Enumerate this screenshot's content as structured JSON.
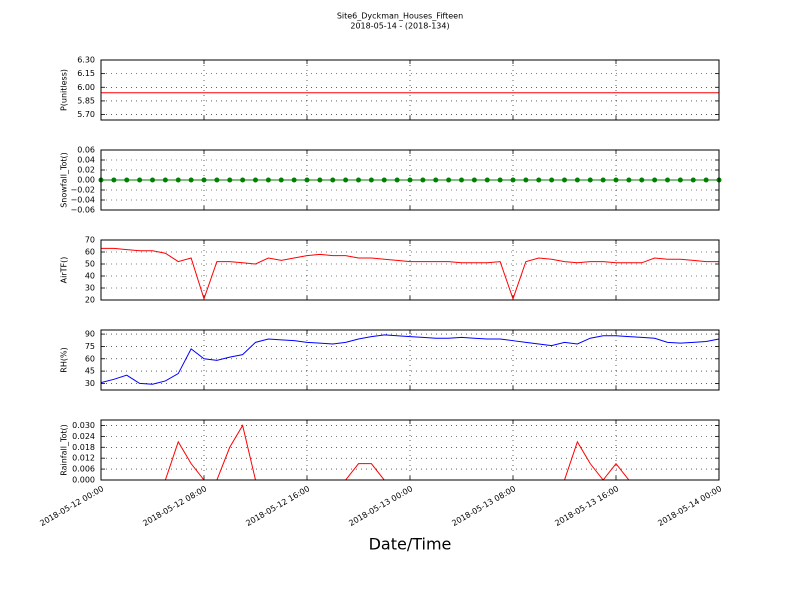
{
  "chart_data": [
    {
      "type": "line",
      "title": "Site6_Dyckman_Houses_Fifteen",
      "subtitle": "2018-05-14 - (2018-134)",
      "ylabel": "P(unitless)",
      "color": "#ff0000",
      "grid": true,
      "x": [
        "2018-05-12 00:00",
        "2018-05-12 02:00",
        "2018-05-12 04:00",
        "2018-05-12 06:00",
        "2018-05-12 08:00",
        "2018-05-12 10:00",
        "2018-05-12 12:00",
        "2018-05-12 14:00",
        "2018-05-12 16:00",
        "2018-05-12 18:00",
        "2018-05-12 20:00",
        "2018-05-12 22:00",
        "2018-05-13 00:00",
        "2018-05-13 02:00",
        "2018-05-13 04:00",
        "2018-05-13 06:00",
        "2018-05-13 08:00",
        "2018-05-13 10:00",
        "2018-05-13 12:00",
        "2018-05-13 14:00",
        "2018-05-13 16:00",
        "2018-05-13 18:00",
        "2018-05-13 20:00",
        "2018-05-13 22:00",
        "2018-05-14 00:00"
      ],
      "values": [
        5.94,
        5.94,
        5.94,
        5.94,
        5.94,
        5.94,
        5.94,
        5.94,
        5.94,
        5.94,
        5.94,
        5.94,
        5.94,
        5.94,
        5.94,
        5.94,
        5.94,
        5.94,
        5.94,
        5.94,
        5.94,
        5.94,
        5.94,
        5.94,
        5.94
      ],
      "ylim": [
        5.64,
        6.3
      ],
      "yticks": [
        {
          "value": 5.7,
          "label": "5.70"
        },
        {
          "value": 5.85,
          "label": "5.85"
        },
        {
          "value": 6.0,
          "label": "6.00"
        },
        {
          "value": 6.15,
          "label": "6.15"
        },
        {
          "value": 6.3,
          "label": "6.30"
        }
      ]
    },
    {
      "type": "line",
      "ylabel": "Snowfall_Tot()",
      "color": "#008000",
      "marker": true,
      "grid": true,
      "x": [
        "2018-05-12 00:00",
        "2018-05-12 01:00",
        "2018-05-12 02:00",
        "2018-05-12 03:00",
        "2018-05-12 04:00",
        "2018-05-12 05:00",
        "2018-05-12 06:00",
        "2018-05-12 07:00",
        "2018-05-12 08:00",
        "2018-05-12 09:00",
        "2018-05-12 10:00",
        "2018-05-12 11:00",
        "2018-05-12 12:00",
        "2018-05-12 13:00",
        "2018-05-12 14:00",
        "2018-05-12 15:00",
        "2018-05-12 16:00",
        "2018-05-12 17:00",
        "2018-05-12 18:00",
        "2018-05-12 19:00",
        "2018-05-12 20:00",
        "2018-05-12 21:00",
        "2018-05-12 22:00",
        "2018-05-12 23:00",
        "2018-05-13 00:00",
        "2018-05-13 01:00",
        "2018-05-13 02:00",
        "2018-05-13 03:00",
        "2018-05-13 04:00",
        "2018-05-13 05:00",
        "2018-05-13 06:00",
        "2018-05-13 07:00",
        "2018-05-13 08:00",
        "2018-05-13 09:00",
        "2018-05-13 10:00",
        "2018-05-13 11:00",
        "2018-05-13 12:00",
        "2018-05-13 13:00",
        "2018-05-13 14:00",
        "2018-05-13 15:00",
        "2018-05-13 16:00",
        "2018-05-13 17:00",
        "2018-05-13 18:00",
        "2018-05-13 19:00",
        "2018-05-13 20:00",
        "2018-05-13 21:00",
        "2018-05-13 22:00",
        "2018-05-13 23:00",
        "2018-05-14 00:00"
      ],
      "values": [
        0,
        0,
        0,
        0,
        0,
        0,
        0,
        0,
        0,
        0,
        0,
        0,
        0,
        0,
        0,
        0,
        0,
        0,
        0,
        0,
        0,
        0,
        0,
        0,
        0,
        0,
        0,
        0,
        0,
        0,
        0,
        0,
        0,
        0,
        0,
        0,
        0,
        0,
        0,
        0,
        0,
        0,
        0,
        0,
        0,
        0,
        0,
        0,
        0
      ],
      "ylim": [
        -0.06,
        0.06
      ],
      "yticks": [
        {
          "value": -0.06,
          "label": "−0.06"
        },
        {
          "value": -0.04,
          "label": "−0.04"
        },
        {
          "value": -0.02,
          "label": "−0.02"
        },
        {
          "value": 0,
          "label": "0.00"
        },
        {
          "value": 0.02,
          "label": "0.02"
        },
        {
          "value": 0.04,
          "label": "0.04"
        },
        {
          "value": 0.06,
          "label": "0.06"
        }
      ]
    },
    {
      "type": "line",
      "ylabel": "AirTF()",
      "color": "#ff0000",
      "grid": true,
      "x": [
        "2018-05-12 00:00",
        "2018-05-12 01:00",
        "2018-05-12 02:00",
        "2018-05-12 03:00",
        "2018-05-12 04:00",
        "2018-05-12 05:00",
        "2018-05-12 06:00",
        "2018-05-12 07:00",
        "2018-05-12 08:00",
        "2018-05-12 09:00",
        "2018-05-12 10:00",
        "2018-05-12 11:00",
        "2018-05-12 12:00",
        "2018-05-12 13:00",
        "2018-05-12 14:00",
        "2018-05-12 15:00",
        "2018-05-12 16:00",
        "2018-05-12 17:00",
        "2018-05-12 18:00",
        "2018-05-12 19:00",
        "2018-05-12 20:00",
        "2018-05-12 21:00",
        "2018-05-12 22:00",
        "2018-05-12 23:00",
        "2018-05-13 00:00",
        "2018-05-13 01:00",
        "2018-05-13 02:00",
        "2018-05-13 03:00",
        "2018-05-13 04:00",
        "2018-05-13 05:00",
        "2018-05-13 06:00",
        "2018-05-13 07:00",
        "2018-05-13 08:00",
        "2018-05-13 09:00",
        "2018-05-13 10:00",
        "2018-05-13 11:00",
        "2018-05-13 12:00",
        "2018-05-13 13:00",
        "2018-05-13 14:00",
        "2018-05-13 15:00",
        "2018-05-13 16:00",
        "2018-05-13 17:00",
        "2018-05-13 18:00",
        "2018-05-13 19:00",
        "2018-05-13 20:00",
        "2018-05-13 21:00",
        "2018-05-13 22:00",
        "2018-05-13 23:00",
        "2018-05-14 00:00"
      ],
      "values": [
        63,
        63,
        62,
        61,
        61,
        59,
        52,
        55,
        21,
        52,
        52,
        51,
        50,
        55,
        53,
        55,
        57,
        58,
        57,
        57,
        55,
        55,
        54,
        53,
        52,
        52,
        52,
        52,
        51,
        51,
        51,
        52,
        21,
        52,
        55,
        54,
        52,
        51,
        52,
        52,
        51,
        51,
        51,
        55,
        54,
        54,
        53,
        52,
        52
      ],
      "ylim": [
        20,
        70
      ],
      "yticks": [
        20,
        30,
        40,
        50,
        60,
        70
      ]
    },
    {
      "type": "line",
      "ylabel": "RH(%)",
      "color": "#0000ff",
      "grid": true,
      "x": [
        "2018-05-12 00:00",
        "2018-05-12 01:00",
        "2018-05-12 02:00",
        "2018-05-12 03:00",
        "2018-05-12 04:00",
        "2018-05-12 05:00",
        "2018-05-12 06:00",
        "2018-05-12 07:00",
        "2018-05-12 08:00",
        "2018-05-12 09:00",
        "2018-05-12 10:00",
        "2018-05-12 11:00",
        "2018-05-12 12:00",
        "2018-05-12 13:00",
        "2018-05-12 14:00",
        "2018-05-12 15:00",
        "2018-05-12 16:00",
        "2018-05-12 17:00",
        "2018-05-12 18:00",
        "2018-05-12 19:00",
        "2018-05-12 20:00",
        "2018-05-12 21:00",
        "2018-05-12 22:00",
        "2018-05-12 23:00",
        "2018-05-13 00:00",
        "2018-05-13 01:00",
        "2018-05-13 02:00",
        "2018-05-13 03:00",
        "2018-05-13 04:00",
        "2018-05-13 05:00",
        "2018-05-13 06:00",
        "2018-05-13 07:00",
        "2018-05-13 08:00",
        "2018-05-13 09:00",
        "2018-05-13 10:00",
        "2018-05-13 11:00",
        "2018-05-13 12:00",
        "2018-05-13 13:00",
        "2018-05-13 14:00",
        "2018-05-13 15:00",
        "2018-05-13 16:00",
        "2018-05-13 17:00",
        "2018-05-13 18:00",
        "2018-05-13 19:00",
        "2018-05-13 20:00",
        "2018-05-13 21:00",
        "2018-05-13 22:00",
        "2018-05-13 23:00",
        "2018-05-14 00:00"
      ],
      "values": [
        31,
        35,
        40,
        30,
        29,
        33,
        42,
        72,
        60,
        58,
        62,
        65,
        80,
        84,
        83,
        82,
        80,
        79,
        78,
        80,
        84,
        87,
        89,
        88,
        87,
        86,
        85,
        85,
        86,
        85,
        84,
        84,
        82,
        80,
        78,
        76,
        80,
        78,
        85,
        88,
        88,
        87,
        86,
        85,
        80,
        79,
        80,
        81,
        84
      ],
      "ylim": [
        22,
        95
      ],
      "yticks": [
        30,
        45,
        60,
        75,
        90
      ]
    },
    {
      "type": "line",
      "ylabel": "Rainfall_Tot()",
      "xlabel": "Date/Time",
      "color": "#ff0000",
      "grid": true,
      "x": [
        "2018-05-12 00:00",
        "2018-05-12 01:00",
        "2018-05-12 02:00",
        "2018-05-12 03:00",
        "2018-05-12 04:00",
        "2018-05-12 05:00",
        "2018-05-12 06:00",
        "2018-05-12 07:00",
        "2018-05-12 08:00",
        "2018-05-12 09:00",
        "2018-05-12 10:00",
        "2018-05-12 11:00",
        "2018-05-12 12:00",
        "2018-05-12 13:00",
        "2018-05-12 14:00",
        "2018-05-12 15:00",
        "2018-05-12 16:00",
        "2018-05-12 17:00",
        "2018-05-12 18:00",
        "2018-05-12 19:00",
        "2018-05-12 20:00",
        "2018-05-12 21:00",
        "2018-05-12 22:00",
        "2018-05-12 23:00",
        "2018-05-13 00:00",
        "2018-05-13 01:00",
        "2018-05-13 02:00",
        "2018-05-13 03:00",
        "2018-05-13 04:00",
        "2018-05-13 05:00",
        "2018-05-13 06:00",
        "2018-05-13 07:00",
        "2018-05-13 08:00",
        "2018-05-13 09:00",
        "2018-05-13 10:00",
        "2018-05-13 11:00",
        "2018-05-13 12:00",
        "2018-05-13 13:00",
        "2018-05-13 14:00",
        "2018-05-13 15:00",
        "2018-05-13 16:00",
        "2018-05-13 17:00",
        "2018-05-13 18:00",
        "2018-05-13 19:00",
        "2018-05-13 20:00",
        "2018-05-13 21:00",
        "2018-05-13 22:00",
        "2018-05-13 23:00",
        "2018-05-14 00:00"
      ],
      "values": [
        0,
        0,
        0,
        0,
        0,
        0,
        0.021,
        0.009,
        0,
        0,
        0.018,
        0.03,
        0,
        0,
        0,
        0,
        0,
        0,
        0,
        0,
        0.009,
        0.009,
        0,
        0,
        0,
        0,
        0,
        0,
        0,
        0,
        0,
        0,
        0,
        0,
        0,
        0,
        0,
        0.021,
        0.009,
        0,
        0.009,
        0,
        0,
        0,
        0,
        0,
        0,
        0,
        0
      ],
      "ylim": [
        0,
        0.033
      ],
      "yticks": [
        {
          "value": 0,
          "label": "0.000"
        },
        {
          "value": 0.006,
          "label": "0.006"
        },
        {
          "value": 0.012,
          "label": "0.012"
        },
        {
          "value": 0.018,
          "label": "0.018"
        },
        {
          "value": 0.024,
          "label": "0.024"
        },
        {
          "value": 0.03,
          "label": "0.030"
        }
      ],
      "xlim": [
        "2018-05-12 00:00",
        "2018-05-14 00:00"
      ],
      "xticks": [
        "2018-05-12 00:00",
        "2018-05-12 08:00",
        "2018-05-12 16:00",
        "2018-05-13 00:00",
        "2018-05-13 08:00",
        "2018-05-13 16:00",
        "2018-05-14 00:00"
      ]
    }
  ]
}
